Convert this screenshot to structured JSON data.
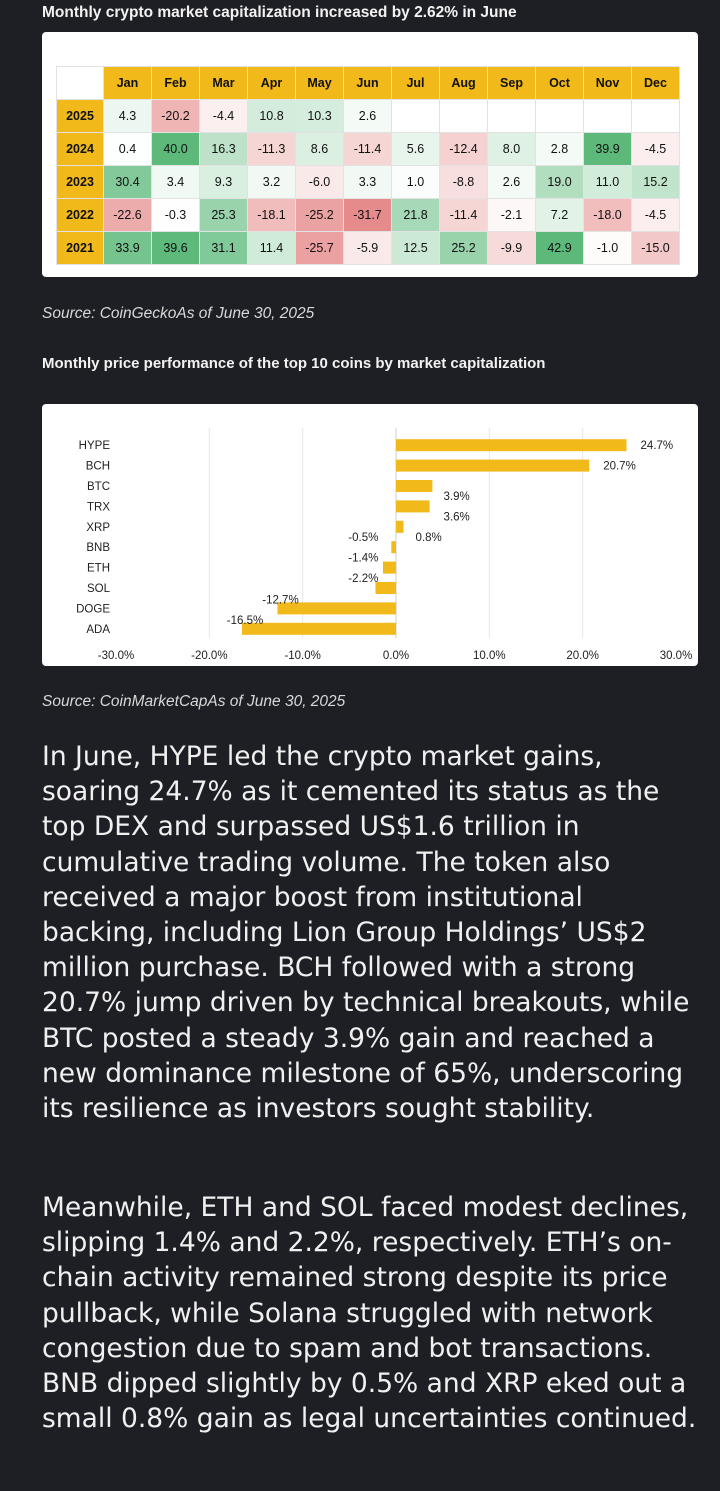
{
  "heading1": "Monthly crypto market capitalization increased by 2.62% in June",
  "source1": "Source: CoinGeckoAs of June 30, 2025",
  "heading2": "Monthly price performance of the top 10 coins by market capitalization",
  "source2": "Source: CoinMarketCapAs of June 30, 2025",
  "paragraph1": "In June, HYPE led the crypto market gains, soaring 24.7% as it cemented its status as the top DEX and surpassed US$1.6 trillion in cumulative trading volume. The token also received a major boost from institutional backing, including Lion Group Holdings’ US$2 million purchase. BCH followed with a strong 20.7% jump driven by technical breakouts, while BTC posted a steady 3.9% gain and reached a new dominance milestone of 65%, underscoring its resilience as investors sought stability.",
  "paragraph2": "Meanwhile, ETH and SOL faced modest declines, slipping 1.4% and 2.2%, respectively. ETH’s on-chain activity remained strong despite its price pullback, while Solana struggled with network congestion due to spam and bot transactions. BNB dipped slightly by 0.5% and XRP eked out a small 0.8% gain as legal uncertainties continued.",
  "colors": {
    "header": "#f1b91a",
    "bar": "#f1b91a",
    "positive_strong": "#5cb97a",
    "negative_strong": "#e06c6c"
  },
  "chart_data": [
    {
      "type": "heatmap",
      "title": "Monthly crypto market capitalization increased by 2.62% in June",
      "columns": [
        "Jan",
        "Feb",
        "Mar",
        "Apr",
        "May",
        "Jun",
        "Jul",
        "Aug",
        "Sep",
        "Oct",
        "Nov",
        "Dec"
      ],
      "rows": [
        {
          "year": "2025",
          "values": [
            "4.3",
            "-20.2",
            "-4.4",
            "10.8",
            "10.3",
            "2.6",
            "",
            "",
            "",
            "",
            "",
            ""
          ]
        },
        {
          "year": "2024",
          "values": [
            "0.4",
            "40.0",
            "16.3",
            "-11.3",
            "8.6",
            "-11.4",
            "5.6",
            "-12.4",
            "8.0",
            "2.8",
            "39.9",
            "-4.5"
          ]
        },
        {
          "year": "2023",
          "values": [
            "30.4",
            "3.4",
            "9.3",
            "3.2",
            "-6.0",
            "3.3",
            "1.0",
            "-8.8",
            "2.6",
            "19.0",
            "11.0",
            "15.2"
          ]
        },
        {
          "year": "2022",
          "values": [
            "-22.6",
            "-0.3",
            "25.3",
            "-18.1",
            "-25.2",
            "-31.7",
            "21.8",
            "-11.4",
            "-2.1",
            "7.2",
            "-18.0",
            "-4.5"
          ]
        },
        {
          "year": "2021",
          "values": [
            "33.9",
            "39.6",
            "31.1",
            "11.4",
            "-25.7",
            "-5.9",
            "12.5",
            "25.2",
            "-9.9",
            "42.9",
            "-1.0",
            "-15.0"
          ]
        }
      ]
    },
    {
      "type": "bar",
      "orientation": "horizontal",
      "title": "Monthly price performance of the top 10 coins by market capitalization",
      "categories": [
        "HYPE",
        "BCH",
        "BTC",
        "TRX",
        "XRP",
        "BNB",
        "ETH",
        "SOL",
        "DOGE",
        "ADA"
      ],
      "values": [
        24.7,
        20.7,
        3.9,
        3.6,
        0.8,
        -0.5,
        -1.4,
        -2.2,
        -12.7,
        -16.5
      ],
      "labels": [
        "24.7%",
        "20.7%",
        "3.9%",
        "3.6%",
        "0.8%",
        "-0.5%",
        "-1.4%",
        "-2.2%",
        "-12.7%",
        "-16.5%"
      ],
      "xlim": [
        -30,
        30
      ],
      "xticks": [
        "-30.0%",
        "-20.0%",
        "-10.0%",
        "0.0%",
        "10.0%",
        "20.0%",
        "30.0%"
      ],
      "grid": true
    }
  ]
}
